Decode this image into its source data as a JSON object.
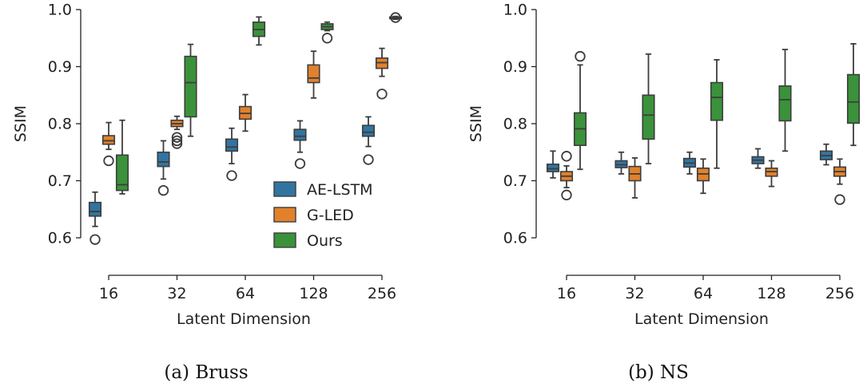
{
  "chart_data": [
    {
      "type": "box",
      "caption": "(a)  Bruss",
      "xlabel": "Latent Dimension",
      "ylabel": "SSIM",
      "ylim": [
        0.6,
        1.0
      ],
      "yticks": [
        "0.6",
        "0.7",
        "0.8",
        "0.9",
        "1.0"
      ],
      "categories": [
        "16",
        "32",
        "64",
        "128",
        "256"
      ],
      "legend": {
        "position": "lower-right"
      },
      "series": [
        {
          "name": "AE-LSTM",
          "color": "#3274a1",
          "boxes": [
            {
              "min": 0.62,
              "q1": 0.638,
              "median": 0.646,
              "q3": 0.662,
              "max": 0.68,
              "outliers": [
                0.597
              ]
            },
            {
              "min": 0.703,
              "q1": 0.725,
              "median": 0.733,
              "q3": 0.75,
              "max": 0.77,
              "outliers": [
                0.683
              ]
            },
            {
              "min": 0.73,
              "q1": 0.752,
              "median": 0.759,
              "q3": 0.773,
              "max": 0.792,
              "outliers": [
                0.709
              ]
            },
            {
              "min": 0.75,
              "q1": 0.771,
              "median": 0.778,
              "q3": 0.79,
              "max": 0.805,
              "outliers": [
                0.73
              ]
            },
            {
              "min": 0.76,
              "q1": 0.778,
              "median": 0.785,
              "q3": 0.797,
              "max": 0.812,
              "outliers": [
                0.737
              ]
            }
          ]
        },
        {
          "name": "G-LED",
          "color": "#e1812c",
          "boxes": [
            {
              "min": 0.755,
              "q1": 0.764,
              "median": 0.77,
              "q3": 0.779,
              "max": 0.802,
              "outliers": [
                0.735
              ]
            },
            {
              "min": 0.79,
              "q1": 0.795,
              "median": 0.8,
              "q3": 0.806,
              "max": 0.813,
              "outliers": [
                0.776,
                0.77,
                0.765
              ]
            },
            {
              "min": 0.787,
              "q1": 0.808,
              "median": 0.818,
              "q3": 0.83,
              "max": 0.851,
              "outliers": []
            },
            {
              "min": 0.845,
              "q1": 0.872,
              "median": 0.88,
              "q3": 0.903,
              "max": 0.927,
              "outliers": []
            },
            {
              "min": 0.883,
              "q1": 0.897,
              "median": 0.907,
              "q3": 0.915,
              "max": 0.932,
              "outliers": [
                0.852
              ]
            }
          ]
        },
        {
          "name": "Ours",
          "color": "#3a923a",
          "boxes": [
            {
              "min": 0.677,
              "q1": 0.683,
              "median": 0.693,
              "q3": 0.745,
              "max": 0.806,
              "outliers": []
            },
            {
              "min": 0.778,
              "q1": 0.812,
              "median": 0.872,
              "q3": 0.918,
              "max": 0.939,
              "outliers": []
            },
            {
              "min": 0.938,
              "q1": 0.953,
              "median": 0.965,
              "q3": 0.978,
              "max": 0.987,
              "outliers": []
            },
            {
              "min": 0.963,
              "q1": 0.965,
              "median": 0.97,
              "q3": 0.975,
              "max": 0.978,
              "outliers": [
                0.95
              ]
            },
            {
              "min": 0.983,
              "q1": 0.984,
              "median": 0.985,
              "q3": 0.987,
              "max": 0.988,
              "outliers": [
                0.986
              ]
            }
          ]
        }
      ]
    },
    {
      "type": "box",
      "caption": "(b)  NS",
      "xlabel": "Latent Dimension",
      "ylabel": "SSIM",
      "ylim": [
        0.6,
        1.0
      ],
      "yticks": [
        "0.6",
        "0.7",
        "0.8",
        "0.9",
        "1.0"
      ],
      "categories": [
        "16",
        "32",
        "64",
        "128",
        "256"
      ],
      "series": [
        {
          "name": "AE-LSTM",
          "color": "#3274a1",
          "boxes": [
            {
              "min": 0.705,
              "q1": 0.716,
              "median": 0.721,
              "q3": 0.729,
              "max": 0.752,
              "outliers": []
            },
            {
              "min": 0.712,
              "q1": 0.723,
              "median": 0.728,
              "q3": 0.735,
              "max": 0.75,
              "outliers": []
            },
            {
              "min": 0.712,
              "q1": 0.724,
              "median": 0.731,
              "q3": 0.739,
              "max": 0.75,
              "outliers": []
            },
            {
              "min": 0.722,
              "q1": 0.73,
              "median": 0.736,
              "q3": 0.742,
              "max": 0.756,
              "outliers": []
            },
            {
              "min": 0.728,
              "q1": 0.737,
              "median": 0.744,
              "q3": 0.752,
              "max": 0.764,
              "outliers": []
            }
          ]
        },
        {
          "name": "G-LED",
          "color": "#e1812c",
          "boxes": [
            {
              "min": 0.688,
              "q1": 0.7,
              "median": 0.708,
              "q3": 0.716,
              "max": 0.726,
              "outliers": [
                0.743,
                0.675
              ]
            },
            {
              "min": 0.67,
              "q1": 0.7,
              "median": 0.712,
              "q3": 0.725,
              "max": 0.74,
              "outliers": []
            },
            {
              "min": 0.678,
              "q1": 0.7,
              "median": 0.712,
              "q3": 0.722,
              "max": 0.738,
              "outliers": []
            },
            {
              "min": 0.69,
              "q1": 0.708,
              "median": 0.716,
              "q3": 0.722,
              "max": 0.735,
              "outliers": []
            },
            {
              "min": 0.694,
              "q1": 0.708,
              "median": 0.716,
              "q3": 0.724,
              "max": 0.738,
              "outliers": [
                0.667
              ]
            }
          ]
        },
        {
          "name": "Ours",
          "color": "#3a923a",
          "boxes": [
            {
              "min": 0.72,
              "q1": 0.762,
              "median": 0.791,
              "q3": 0.819,
              "max": 0.903,
              "outliers": [
                0.918
              ]
            },
            {
              "min": 0.73,
              "q1": 0.773,
              "median": 0.815,
              "q3": 0.85,
              "max": 0.922,
              "outliers": []
            },
            {
              "min": 0.722,
              "q1": 0.806,
              "median": 0.846,
              "q3": 0.872,
              "max": 0.912,
              "outliers": []
            },
            {
              "min": 0.752,
              "q1": 0.805,
              "median": 0.842,
              "q3": 0.866,
              "max": 0.93,
              "outliers": []
            },
            {
              "min": 0.762,
              "q1": 0.801,
              "median": 0.838,
              "q3": 0.886,
              "max": 0.94,
              "outliers": []
            }
          ]
        }
      ]
    }
  ]
}
